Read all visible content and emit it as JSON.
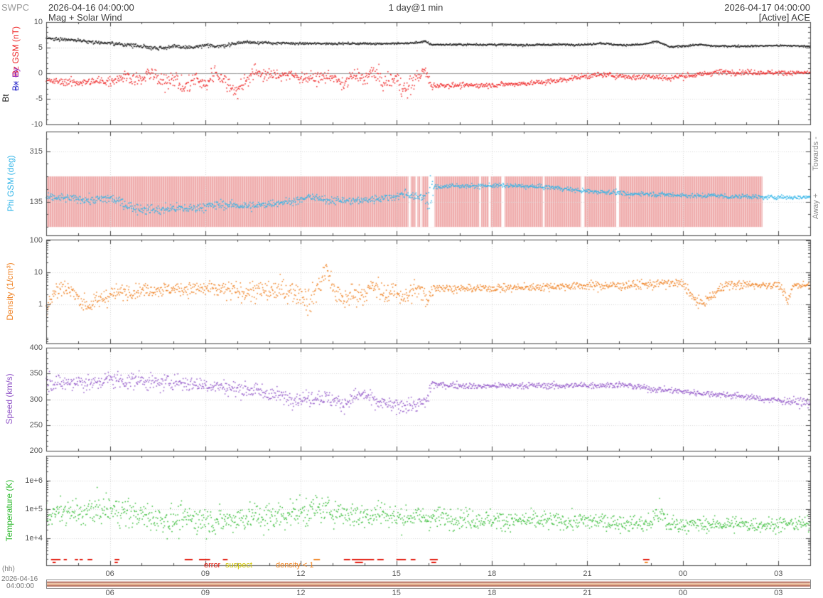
{
  "header": {
    "agency": "SWPC",
    "start_datetime": "2026-04-16 04:00:00",
    "resolution": "1 day@1 min",
    "end_datetime": "2026-04-17 04:00:00",
    "plot_title": "Mag + Solar Wind",
    "status": "[Active] ACE"
  },
  "axes": {
    "hour_ticks": [
      "06",
      "09",
      "12",
      "15",
      "18",
      "21",
      "00",
      "03"
    ],
    "hour_tick_values": [
      6,
      9,
      12,
      15,
      18,
      21,
      24,
      27
    ],
    "hh_label": "(hh)",
    "footer_date": "2026-04-16",
    "footer_time": "04:00:00",
    "xlim_hours": [
      4,
      28
    ]
  },
  "flags_legend": [
    {
      "label": "error",
      "color": "#e31a0c"
    },
    {
      "label": "suspect",
      "color": "#cfc400"
    },
    {
      "label": "density < 1",
      "color": "#f08522"
    }
  ],
  "chart_data": [
    {
      "name": "mag",
      "type": "scatter",
      "title": "Mag + Solar Wind",
      "axis_labels": [
        {
          "text": "Bz GSM (nT)",
          "color": "#ee2222",
          "struck": false
        },
        {
          "text": "By",
          "color": "#9933bb",
          "struck": true
        },
        {
          "text": "Bx",
          "color": "#3333cc",
          "struck": true
        },
        {
          "text": "Bt",
          "color": "#1a1a1a",
          "struck": false
        }
      ],
      "ylim": [
        -10,
        10
      ],
      "yticks": [
        10,
        5,
        0,
        -5,
        -10
      ],
      "ytick_labels": [
        "10",
        "5",
        "0",
        "-5",
        "-10"
      ],
      "zero_line": true,
      "series": [
        {
          "name": "Bt",
          "color": "#1a1a1a",
          "kx": [
            4,
            4.7,
            5.5,
            6,
            6.5,
            7,
            7.5,
            8,
            8.6,
            9,
            9.5,
            10,
            10.3,
            11,
            12,
            13,
            14,
            15,
            15.5,
            15.9,
            16.1,
            17,
            18,
            19,
            20,
            21,
            21.4,
            22,
            22.7,
            23.2,
            23.6,
            24,
            24.5,
            25,
            26,
            27,
            28
          ],
          "ky": [
            6.8,
            6.6,
            6.1,
            5.8,
            5.6,
            5.3,
            4.9,
            5.2,
            5.0,
            5.4,
            5.3,
            5.9,
            6.1,
            5.9,
            5.8,
            5.8,
            5.8,
            5.8,
            5.9,
            6.2,
            5.6,
            5.6,
            5.6,
            5.5,
            5.6,
            5.6,
            5.9,
            5.5,
            5.6,
            6.2,
            5.1,
            5.3,
            5.6,
            5.3,
            5.3,
            5.4,
            5.3
          ],
          "nx": [
            4,
            8,
            12,
            16,
            20,
            28
          ],
          "ny": [
            0.15,
            0.2,
            0.1,
            0.1,
            0.1,
            0.08
          ]
        },
        {
          "name": "Bz",
          "color": "#ee2222",
          "kx": [
            4,
            5,
            6,
            6.5,
            7,
            7.3,
            7.6,
            8,
            8.3,
            8.7,
            9,
            9.3,
            9.6,
            10,
            10.3,
            10.6,
            11,
            11.5,
            12,
            12.5,
            13,
            13.3,
            13.6,
            14,
            14.3,
            14.6,
            15,
            15.3,
            15.6,
            15.9,
            16.1,
            16.5,
            17,
            18,
            19,
            19.5,
            20,
            20.5,
            21,
            21.5,
            22,
            22.5,
            23,
            23.5,
            24,
            24.5,
            25,
            26,
            27,
            28
          ],
          "ky": [
            -1.5,
            -1.8,
            -1.5,
            -0.5,
            -1.5,
            0.5,
            -2.0,
            -0.5,
            -3.0,
            -1.0,
            -2.5,
            0.5,
            -1.5,
            -3.5,
            -1.0,
            0.3,
            -0.5,
            -0.2,
            -0.8,
            -1.0,
            -0.5,
            -2.5,
            -0.5,
            -1.0,
            0.3,
            -2.0,
            -1.0,
            -3.5,
            -1.0,
            0.5,
            -2.5,
            -2.3,
            -2.4,
            -2.3,
            -2.0,
            -1.8,
            -1.5,
            -1.0,
            -0.5,
            -0.3,
            -0.5,
            -0.8,
            -0.5,
            -1.0,
            -0.5,
            -0.3,
            0.2,
            0.2,
            0.1,
            0.1
          ],
          "nx": [
            4,
            6,
            8,
            10,
            12,
            14,
            15.5,
            16.3,
            20,
            24,
            28
          ],
          "ny": [
            0.3,
            0.5,
            0.9,
            0.8,
            0.5,
            0.7,
            0.9,
            0.25,
            0.25,
            0.3,
            0.2
          ]
        }
      ]
    },
    {
      "name": "phi",
      "type": "scatter",
      "ylabel": "Phi GSM (deg)",
      "ylabel_color": "#30b4e8",
      "ylim": [
        15,
        385
      ],
      "yticks": [
        315,
        135
      ],
      "ytick_labels": [
        "315",
        "135"
      ],
      "right_labels": [
        "Towards -",
        "Away +"
      ],
      "band": {
        "lo": 45,
        "hi": 225,
        "color": "#efabab",
        "end_hour": 26.5,
        "gaps": [
          [
            15.38,
            15.45
          ],
          [
            15.6,
            15.66
          ],
          [
            15.75,
            15.8
          ],
          [
            16.0,
            16.2
          ],
          [
            17.6,
            17.66
          ],
          [
            17.9,
            17.96
          ],
          [
            18.3,
            18.4
          ],
          [
            19.6,
            19.66
          ],
          [
            20.8,
            20.9
          ],
          [
            21.9,
            22.0
          ]
        ]
      },
      "series": [
        {
          "name": "Phi",
          "color": "#30b4e8",
          "kx": [
            4,
            4.5,
            5,
            5.5,
            6,
            6.3,
            6.7,
            7,
            7.5,
            8,
            8.5,
            9,
            9.5,
            10,
            10.5,
            11,
            11.5,
            12,
            12.3,
            12.7,
            13,
            13.5,
            14,
            14.5,
            15,
            15.3,
            15.6,
            15.9,
            16.05,
            16.15,
            16.3,
            16.5,
            17,
            17.5,
            18,
            18.5,
            19,
            19.5,
            20,
            20.5,
            21,
            21.5,
            22,
            22.3,
            22.6,
            23,
            23.5,
            24,
            24.5,
            25,
            25.5,
            26,
            26.5,
            27,
            27.5,
            28
          ],
          "ky": [
            150,
            148,
            145,
            140,
            148,
            135,
            115,
            110,
            105,
            112,
            110,
            118,
            125,
            122,
            118,
            128,
            135,
            140,
            155,
            140,
            142,
            138,
            140,
            148,
            155,
            165,
            150,
            155,
            130,
            185,
            188,
            190,
            192,
            190,
            193,
            192,
            190,
            188,
            185,
            178,
            172,
            170,
            168,
            158,
            165,
            162,
            160,
            158,
            155,
            158,
            152,
            155,
            150,
            152,
            150,
            152
          ],
          "nx": [
            4,
            6,
            7,
            9,
            12,
            15,
            15.9,
            16.05,
            16.2,
            17,
            20,
            24,
            28
          ],
          "ny": [
            6,
            9,
            10,
            8,
            6,
            7,
            8,
            45,
            5,
            3.5,
            4,
            4,
            4
          ]
        }
      ]
    },
    {
      "name": "density",
      "type": "scatter",
      "scale": "log",
      "ylabel": "Density (1/cm³)",
      "ylabel_color": "#ef8122",
      "ylim": [
        0.06,
        103
      ],
      "yticks": [
        100,
        10,
        1
      ],
      "ytick_labels": [
        "100",
        "10",
        "1"
      ],
      "series": [
        {
          "name": "Density",
          "color": "#ef8122",
          "log_noise": true,
          "kx": [
            4,
            4.3,
            4.6,
            5,
            5.3,
            5.6,
            6,
            6.5,
            7,
            8,
            9,
            10,
            11,
            11.5,
            12,
            12.3,
            12.6,
            12.8,
            13,
            13.3,
            13.6,
            14,
            14.3,
            14.6,
            15,
            15.3,
            15.6,
            16,
            16.2,
            16.5,
            17,
            18,
            19,
            20,
            21,
            22,
            23,
            23.5,
            24,
            24.3,
            24.6,
            25,
            25.3,
            26,
            27,
            27.3,
            27.5,
            28
          ],
          "ky": [
            0.8,
            2.5,
            3.5,
            1.5,
            0.9,
            1.2,
            2.0,
            2.5,
            2.8,
            3.0,
            3.0,
            2.5,
            2.5,
            2.8,
            2.2,
            1.0,
            4.0,
            12,
            3.0,
            1.2,
            2.0,
            2.2,
            3.5,
            2.0,
            2.5,
            1.5,
            3.0,
            1.5,
            3.5,
            3.2,
            3.0,
            3.2,
            3.3,
            3.6,
            3.8,
            3.8,
            4.2,
            4.5,
            4.3,
            1.5,
            1.0,
            2.0,
            4.0,
            4.0,
            4.0,
            1.0,
            4.0,
            4.0
          ],
          "nx": [
            4,
            8,
            12,
            13,
            16,
            16.3,
            20,
            24,
            28
          ],
          "ny": [
            0.15,
            0.1,
            0.2,
            0.18,
            0.15,
            0.06,
            0.06,
            0.08,
            0.05
          ]
        }
      ]
    },
    {
      "name": "speed",
      "type": "scatter",
      "ylabel": "Speed (km/s)",
      "ylabel_color": "#9257c8",
      "ylim": [
        200,
        400
      ],
      "yticks": [
        400,
        350,
        300,
        250,
        200
      ],
      "ytick_labels": [
        "400",
        "350",
        "300",
        "250",
        "200"
      ],
      "series": [
        {
          "name": "Speed",
          "color": "#9257c8",
          "kx": [
            4,
            4.5,
            5,
            5.5,
            6,
            6.5,
            7,
            7.5,
            8,
            8.5,
            9,
            9.5,
            10,
            10.5,
            11,
            11.5,
            12,
            12.5,
            13,
            13.3,
            13.7,
            14,
            14.3,
            14.7,
            15,
            15.3,
            15.6,
            15.95,
            16.1,
            16.3,
            17,
            17.5,
            18,
            19,
            20,
            21,
            22,
            22.5,
            23,
            23.5,
            24,
            24.5,
            25,
            25.5,
            26,
            26.5,
            27,
            27.5,
            28
          ],
          "ky": [
            335,
            330,
            335,
            330,
            340,
            335,
            338,
            330,
            335,
            330,
            328,
            325,
            320,
            318,
            310,
            305,
            300,
            305,
            300,
            290,
            305,
            310,
            295,
            290,
            285,
            290,
            288,
            295,
            330,
            328,
            327,
            325,
            326,
            327,
            326,
            327,
            328,
            325,
            320,
            318,
            315,
            312,
            310,
            308,
            305,
            300,
            298,
            295,
            293
          ],
          "nx": [
            4,
            8,
            11,
            13,
            15,
            16,
            16.3,
            20,
            24,
            27,
            28
          ],
          "ny": [
            8,
            8,
            7,
            8,
            7,
            8,
            3,
            3,
            3,
            3,
            5
          ]
        }
      ]
    },
    {
      "name": "temperature",
      "type": "scatter",
      "scale": "log",
      "ylabel": "Temperature (K)",
      "ylabel_color": "#33bb33",
      "ylim": [
        1200,
        7000000.0
      ],
      "yticks": [
        1000000.0,
        100000.0,
        10000.0
      ],
      "ytick_labels": [
        "1e+6",
        "1e+5",
        "1e+4"
      ],
      "series": [
        {
          "name": "Temperature",
          "color": "#33bb33",
          "log_noise": true,
          "kx": [
            4,
            4.5,
            5,
            5.5,
            6,
            6.5,
            7,
            7.5,
            8,
            8.5,
            9,
            9.5,
            10,
            10.5,
            11,
            11.5,
            12,
            12.5,
            13,
            13.5,
            14,
            14.5,
            15,
            15.5,
            16,
            16.5,
            17,
            17.5,
            18,
            18.5,
            19,
            19.5,
            20,
            20.5,
            21,
            21.5,
            22,
            22.5,
            23,
            23.2,
            23.5,
            24,
            24.5,
            25,
            25.5,
            26,
            26.5,
            27,
            27.5,
            28
          ],
          "ky": [
            60000.0,
            80000.0,
            70000.0,
            90000.0,
            100000.0,
            80000.0,
            60000.0,
            50000.0,
            40000.0,
            50000.0,
            45000.0,
            40000.0,
            50000.0,
            60000.0,
            50000.0,
            70000.0,
            80000.0,
            100000.0,
            90000.0,
            70000.0,
            60000.0,
            80000.0,
            50000.0,
            60000.0,
            50000.0,
            55000.0,
            50000.0,
            45000.0,
            45000.0,
            40000.0,
            42000.0,
            40000.0,
            40000.0,
            38000.0,
            40000.0,
            38000.0,
            35000.0,
            33000.0,
            32000.0,
            80000.0,
            32000.0,
            30000.0,
            30000.0,
            30000.0,
            32000.0,
            30000.0,
            30000.0,
            30000.0,
            32000.0,
            30000.0
          ],
          "nx": [
            4,
            8,
            12,
            16,
            20,
            23,
            23.3,
            24,
            28
          ],
          "ny": [
            0.22,
            0.25,
            0.25,
            0.18,
            0.15,
            0.15,
            0.25,
            0.12,
            0.12
          ]
        }
      ],
      "flags": {
        "colors": [
          "#e31a0c",
          "#f08522"
        ],
        "segments": [
          [
            4.15,
            4.45,
            0,
            0
          ],
          [
            4.2,
            4.3,
            1,
            0
          ],
          [
            4.55,
            4.65,
            0,
            0
          ],
          [
            4.9,
            5.0,
            0,
            0
          ],
          [
            5.05,
            5.15,
            0,
            0
          ],
          [
            5.3,
            5.45,
            0,
            0
          ],
          [
            6.15,
            6.3,
            0,
            0
          ],
          [
            6.15,
            6.25,
            1,
            0
          ],
          [
            8.35,
            8.6,
            0,
            0
          ],
          [
            8.8,
            9.15,
            0,
            0
          ],
          [
            9.55,
            9.7,
            0,
            0
          ],
          [
            12.4,
            12.6,
            0,
            1
          ],
          [
            13.35,
            13.55,
            0,
            0
          ],
          [
            13.6,
            14.3,
            0,
            0
          ],
          [
            13.7,
            13.95,
            1,
            0
          ],
          [
            14.4,
            14.6,
            0,
            0
          ],
          [
            15.0,
            15.3,
            0,
            0
          ],
          [
            15.45,
            15.6,
            0,
            0
          ],
          [
            16.05,
            16.3,
            0,
            0
          ],
          [
            16.1,
            16.25,
            1,
            0
          ],
          [
            22.75,
            22.95,
            0,
            0
          ],
          [
            22.8,
            22.9,
            1,
            1
          ]
        ]
      }
    }
  ],
  "range_bar": {
    "line_colors": [
      "#9c3a20",
      "#d2691e",
      "#9c3a20"
    ]
  }
}
